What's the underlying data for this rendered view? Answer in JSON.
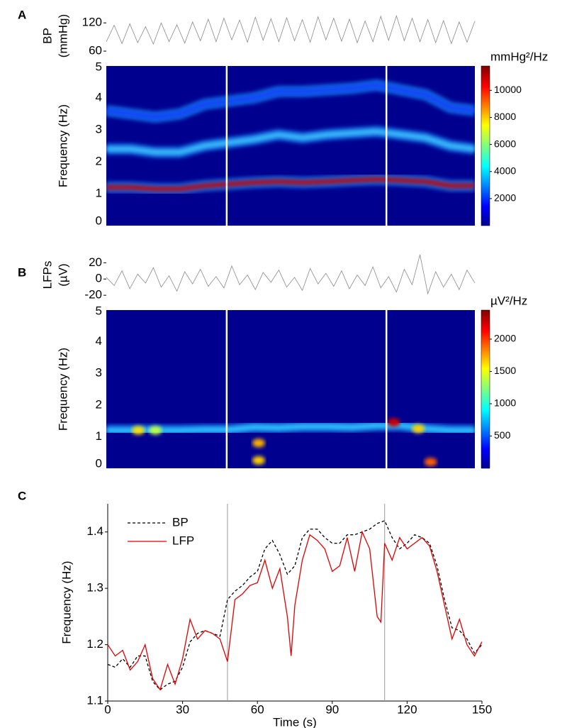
{
  "chart_data": [
    {
      "type": "trace",
      "label": "A",
      "ylabel": [
        "BP",
        "(mmHg)"
      ],
      "color": "#8a8a8a",
      "ylim": [
        45,
        140
      ],
      "yticks": [
        60,
        120
      ],
      "values": [
        80,
        115,
        76,
        118,
        78,
        112,
        75,
        120,
        80,
        116,
        77,
        122,
        82,
        128,
        80,
        130,
        84,
        126,
        79,
        132,
        83,
        129,
        80,
        131,
        82,
        127,
        79,
        133,
        84,
        130,
        81,
        128,
        78,
        124,
        80,
        134,
        83,
        135,
        82,
        130,
        80,
        127,
        78,
        125,
        76,
        122,
        79,
        124
      ]
    },
    {
      "type": "spectrogram",
      "ylabel": "Frequency (Hz)",
      "xlim": [
        0,
        150
      ],
      "ylim": [
        0,
        5
      ],
      "yticks": [
        0,
        1,
        2,
        3,
        4,
        5
      ],
      "vlines": [
        49,
        114
      ],
      "background": "#00008f",
      "x": [
        0,
        10,
        20,
        30,
        40,
        50,
        60,
        70,
        80,
        90,
        100,
        110,
        120,
        130,
        140,
        150
      ],
      "series": [
        {
          "color": "#c80000",
          "values": [
            1.2,
            1.2,
            1.15,
            1.15,
            1.25,
            1.3,
            1.35,
            1.38,
            1.35,
            1.38,
            1.42,
            1.45,
            1.42,
            1.38,
            1.25,
            1.25
          ]
        },
        {
          "color": "#40c8ff",
          "values": [
            2.4,
            2.4,
            2.3,
            2.3,
            2.5,
            2.6,
            2.7,
            2.85,
            2.75,
            2.85,
            2.9,
            2.95,
            2.85,
            2.75,
            2.5,
            2.4
          ]
        },
        {
          "color": "#1040ff",
          "values": [
            3.6,
            3.5,
            3.4,
            3.5,
            3.8,
            3.9,
            4.0,
            4.2,
            4.2,
            4.25,
            4.3,
            4.4,
            4.25,
            4.1,
            3.7,
            3.6
          ]
        }
      ],
      "colorbar": {
        "label": "mmHg²/Hz",
        "lim": [
          0,
          11800
        ],
        "ticks": [
          2000,
          4000,
          6000,
          8000,
          10000
        ]
      }
    },
    {
      "type": "trace",
      "label": "B",
      "ylabel": [
        "LFPs",
        "(µV)"
      ],
      "color": "#8a8a8a",
      "ylim": [
        -26,
        36
      ],
      "yticks": [
        -20,
        0,
        20
      ],
      "values": [
        2,
        -8,
        10,
        -12,
        6,
        -5,
        14,
        -10,
        4,
        -15,
        9,
        -6,
        12,
        -9,
        3,
        -11,
        16,
        -7,
        5,
        -13,
        8,
        -4,
        11,
        -10,
        2,
        -14,
        13,
        -6,
        7,
        -9,
        10,
        -12,
        5,
        -8,
        15,
        -11,
        3,
        -16,
        12,
        -7,
        30,
        -18,
        9,
        -10,
        6,
        -13,
        11,
        -5
      ]
    },
    {
      "type": "spectrogram",
      "ylabel": "Frequency (Hz)",
      "xlim": [
        0,
        150
      ],
      "ylim": [
        0,
        5
      ],
      "yticks": [
        0,
        1,
        2,
        3,
        4,
        5
      ],
      "vlines": [
        49,
        114
      ],
      "background": "#00008f",
      "x": [
        0,
        10,
        20,
        30,
        40,
        50,
        60,
        70,
        80,
        90,
        100,
        110,
        120,
        130,
        140,
        150
      ],
      "series": [
        {
          "color": "#30d0ff",
          "values": [
            1.2,
            1.2,
            1.2,
            1.2,
            1.22,
            1.22,
            1.3,
            1.28,
            1.32,
            1.32,
            1.3,
            1.35,
            1.35,
            1.25,
            1.2,
            1.2
          ]
        }
      ],
      "spots": {
        "x": [
          13,
          20,
          62,
          62,
          117,
          127,
          132
        ],
        "y": [
          1.2,
          1.2,
          0.8,
          0.25,
          1.45,
          1.25,
          0.2
        ],
        "colors": [
          "#ffe000",
          "#c0ff40",
          "#ffb000",
          "#ffd000",
          "#d00000",
          "#ffd000",
          "#ff6000"
        ]
      },
      "colorbar": {
        "label": "µV²/Hz",
        "lim": [
          0,
          2450
        ],
        "ticks": [
          500,
          1000,
          1500,
          2000
        ]
      }
    },
    {
      "type": "line",
      "label": "C",
      "xlabel": "Time (s)",
      "ylabel": "Frequency (Hz)",
      "xlim": [
        0,
        150
      ],
      "xticks": [
        0,
        30,
        60,
        90,
        120,
        150
      ],
      "ylim": [
        1.1,
        1.45
      ],
      "yticks": [
        1.1,
        1.2,
        1.3,
        1.4
      ],
      "vlines": [
        48,
        111
      ],
      "legend": "upper left",
      "series": [
        {
          "name": "BP",
          "color": "#000000",
          "dash": true,
          "x": [
            0,
            3,
            6,
            9,
            12,
            15,
            18,
            21,
            24,
            27,
            30,
            33,
            36,
            39,
            42,
            45,
            48,
            51,
            54,
            57,
            60,
            63,
            66,
            69,
            72,
            75,
            78,
            81,
            84,
            87,
            90,
            93,
            96,
            99,
            102,
            105,
            108,
            111,
            114,
            117,
            120,
            123,
            126,
            129,
            132,
            135,
            138,
            141,
            144,
            147,
            150
          ],
          "values": [
            1.165,
            1.16,
            1.175,
            1.16,
            1.18,
            1.18,
            1.135,
            1.12,
            1.13,
            1.135,
            1.16,
            1.205,
            1.22,
            1.225,
            1.22,
            1.215,
            1.28,
            1.295,
            1.305,
            1.32,
            1.33,
            1.37,
            1.385,
            1.36,
            1.325,
            1.34,
            1.39,
            1.405,
            1.405,
            1.39,
            1.38,
            1.38,
            1.395,
            1.395,
            1.4,
            1.405,
            1.415,
            1.42,
            1.39,
            1.37,
            1.38,
            1.395,
            1.39,
            1.38,
            1.34,
            1.28,
            1.23,
            1.225,
            1.21,
            1.185,
            1.2
          ]
        },
        {
          "name": "LFP",
          "color": "#e00000",
          "dash": false,
          "x": [
            0,
            3,
            6,
            9,
            12,
            15,
            18,
            21,
            24,
            27,
            30,
            33,
            36,
            39,
            42,
            45,
            48,
            51,
            54,
            57,
            60,
            63,
            66,
            69,
            72,
            73.5,
            75,
            78,
            81,
            84,
            87,
            90,
            93,
            96,
            99,
            102,
            105,
            108,
            109.5,
            111,
            114,
            117,
            120,
            123,
            126,
            129,
            132,
            135,
            138,
            141,
            144,
            147,
            150
          ],
          "values": [
            1.2,
            1.18,
            1.19,
            1.155,
            1.17,
            1.2,
            1.14,
            1.12,
            1.165,
            1.13,
            1.175,
            1.245,
            1.21,
            1.225,
            1.22,
            1.21,
            1.17,
            1.28,
            1.29,
            1.305,
            1.31,
            1.35,
            1.3,
            1.335,
            1.25,
            1.18,
            1.27,
            1.35,
            1.395,
            1.385,
            1.37,
            1.33,
            1.34,
            1.39,
            1.33,
            1.4,
            1.37,
            1.25,
            1.24,
            1.38,
            1.35,
            1.39,
            1.37,
            1.38,
            1.39,
            1.375,
            1.33,
            1.27,
            1.21,
            1.245,
            1.2,
            1.18,
            1.205
          ]
        }
      ]
    }
  ]
}
